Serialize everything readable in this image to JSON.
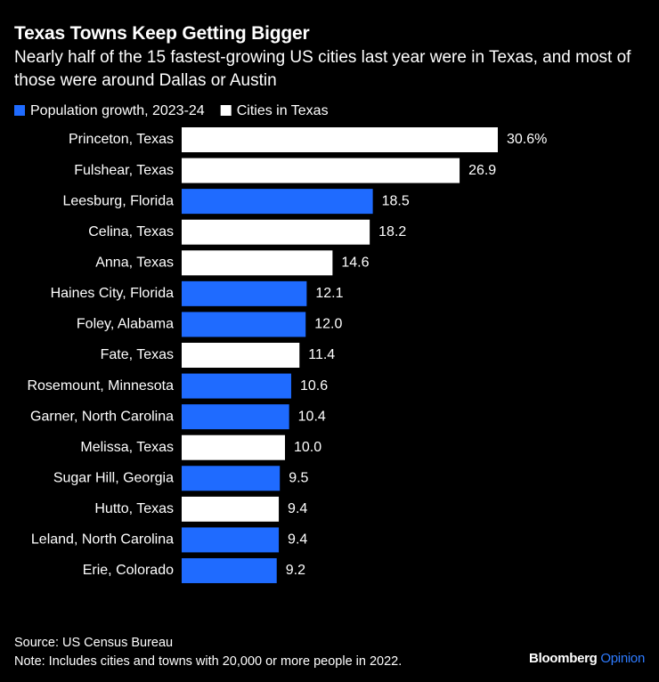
{
  "chart_data": {
    "type": "bar",
    "orientation": "horizontal",
    "title": "Texas Towns Keep Getting Bigger",
    "subtitle": "Nearly half of the 15 fastest-growing US cities last year were in Texas, and most of those were around Dallas or Austin",
    "legend": [
      {
        "name": "Population growth, 2023-24",
        "color": "#1f6bff"
      },
      {
        "name": "Cities in Texas",
        "color": "#ffffff"
      }
    ],
    "categories": [
      "Princeton, Texas",
      "Fulshear, Texas",
      "Leesburg, Florida",
      "Celina, Texas",
      "Anna, Texas",
      "Haines City, Florida",
      "Foley, Alabama",
      "Fate, Texas",
      "Rosemount, Minnesota",
      "Garner, North Carolina",
      "Melissa, Texas",
      "Sugar Hill, Georgia",
      "Hutto, Texas",
      "Leland, North Carolina",
      "Erie, Colorado"
    ],
    "values": [
      30.6,
      26.9,
      18.5,
      18.2,
      14.6,
      12.1,
      12.0,
      11.4,
      10.6,
      10.4,
      10.0,
      9.5,
      9.4,
      9.4,
      9.2
    ],
    "value_labels": [
      "30.6%",
      "26.9",
      "18.5",
      "18.2",
      "14.6",
      "12.1",
      "12.0",
      "11.4",
      "10.6",
      "10.4",
      "10.0",
      "9.5",
      "9.4",
      "9.4",
      "9.2"
    ],
    "colors": [
      "#ffffff",
      "#ffffff",
      "#1f6bff",
      "#ffffff",
      "#ffffff",
      "#1f6bff",
      "#1f6bff",
      "#ffffff",
      "#1f6bff",
      "#1f6bff",
      "#ffffff",
      "#1f6bff",
      "#ffffff",
      "#1f6bff",
      "#1f6bff"
    ],
    "source": "Source: US Census Bureau",
    "note": "Note: Includes cities and towns with 20,000 or more people in 2022.",
    "brand": {
      "name": "Bloomberg",
      "section": "Opinion"
    }
  }
}
